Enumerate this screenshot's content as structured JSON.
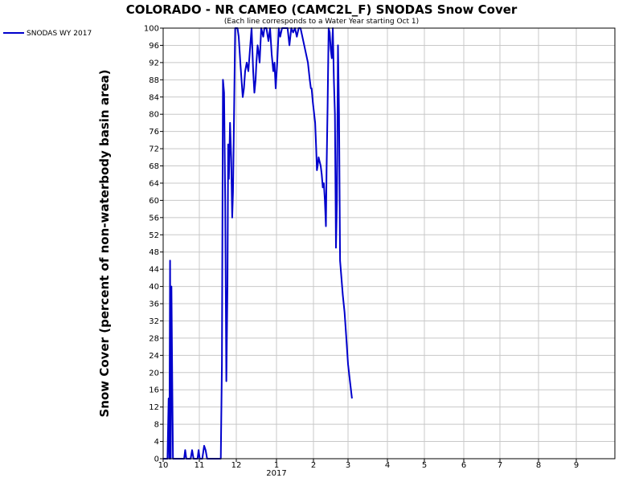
{
  "chart_data": {
    "type": "line",
    "title": "COLORADO - NR CAMEO (CAMC2L_F) SNODAS Snow Cover",
    "subtitle": "(Each line corresponds to a Water Year starting Oct 1)",
    "ylabel": "Snow Cover (percent of non-waterbody basin area)",
    "xlabel": "",
    "ylim": [
      0,
      100
    ],
    "y_ticks": [
      0,
      4,
      8,
      12,
      16,
      20,
      24,
      28,
      32,
      36,
      40,
      44,
      48,
      52,
      56,
      60,
      64,
      68,
      72,
      76,
      80,
      84,
      88,
      92,
      96,
      100
    ],
    "x_ticks": [
      {
        "m": 0,
        "label": "10"
      },
      {
        "m": 1,
        "label": "11"
      },
      {
        "m": 2,
        "label": "12"
      },
      {
        "m": 3,
        "label": "1"
      },
      {
        "m": 4,
        "label": "2"
      },
      {
        "m": 5,
        "label": "3"
      },
      {
        "m": 6,
        "label": "4"
      },
      {
        "m": 7,
        "label": "5"
      },
      {
        "m": 8,
        "label": "6"
      },
      {
        "m": 9,
        "label": "7"
      },
      {
        "m": 10,
        "label": "8"
      },
      {
        "m": 11,
        "label": "9"
      }
    ],
    "year_label": {
      "m": 3,
      "label": "2017"
    },
    "grid": true,
    "legend": {
      "placement": "top-left-outside"
    },
    "series": [
      {
        "name": "SNODAS WY 2017",
        "color": "#0000cc",
        "points": [
          [
            0.0,
            0
          ],
          [
            0.12,
            0
          ],
          [
            0.15,
            14
          ],
          [
            0.17,
            0
          ],
          [
            0.19,
            46
          ],
          [
            0.21,
            0
          ],
          [
            0.23,
            40
          ],
          [
            0.25,
            18
          ],
          [
            0.27,
            0
          ],
          [
            0.3,
            0
          ],
          [
            0.5,
            0
          ],
          [
            0.58,
            0
          ],
          [
            0.61,
            2
          ],
          [
            0.64,
            0
          ],
          [
            0.7,
            0
          ],
          [
            0.76,
            0
          ],
          [
            0.8,
            2
          ],
          [
            0.84,
            0
          ],
          [
            0.9,
            0
          ],
          [
            0.95,
            0
          ],
          [
            0.98,
            2
          ],
          [
            1.01,
            0
          ],
          [
            1.08,
            0
          ],
          [
            1.13,
            3
          ],
          [
            1.17,
            2
          ],
          [
            1.21,
            0
          ],
          [
            1.3,
            0
          ],
          [
            1.58,
            0
          ],
          [
            1.61,
            22
          ],
          [
            1.64,
            88
          ],
          [
            1.67,
            85
          ],
          [
            1.7,
            60
          ],
          [
            1.73,
            18
          ],
          [
            1.76,
            40
          ],
          [
            1.78,
            73
          ],
          [
            1.8,
            65
          ],
          [
            1.83,
            78
          ],
          [
            1.86,
            70
          ],
          [
            1.89,
            56
          ],
          [
            1.91,
            62
          ],
          [
            1.94,
            80
          ],
          [
            1.97,
            100
          ],
          [
            2.0,
            100
          ],
          [
            2.03,
            100
          ],
          [
            2.06,
            98
          ],
          [
            2.1,
            92
          ],
          [
            2.13,
            88
          ],
          [
            2.16,
            84
          ],
          [
            2.19,
            86
          ],
          [
            2.22,
            90
          ],
          [
            2.26,
            92
          ],
          [
            2.3,
            90
          ],
          [
            2.34,
            95
          ],
          [
            2.38,
            100
          ],
          [
            2.42,
            90
          ],
          [
            2.45,
            85
          ],
          [
            2.48,
            88
          ],
          [
            2.5,
            92
          ],
          [
            2.53,
            96
          ],
          [
            2.56,
            94
          ],
          [
            2.58,
            92
          ],
          [
            2.62,
            100
          ],
          [
            2.67,
            98
          ],
          [
            2.7,
            100
          ],
          [
            2.75,
            100
          ],
          [
            2.8,
            97
          ],
          [
            2.84,
            100
          ],
          [
            2.88,
            94
          ],
          [
            2.92,
            90
          ],
          [
            2.95,
            92
          ],
          [
            2.98,
            86
          ],
          [
            3.02,
            92
          ],
          [
            3.06,
            100
          ],
          [
            3.1,
            98
          ],
          [
            3.15,
            100
          ],
          [
            3.2,
            100
          ],
          [
            3.25,
            100
          ],
          [
            3.3,
            100
          ],
          [
            3.35,
            96
          ],
          [
            3.4,
            100
          ],
          [
            3.45,
            99
          ],
          [
            3.5,
            100
          ],
          [
            3.55,
            98
          ],
          [
            3.6,
            100
          ],
          [
            3.65,
            100
          ],
          [
            3.7,
            98
          ],
          [
            3.75,
            96
          ],
          [
            3.8,
            94
          ],
          [
            3.85,
            92
          ],
          [
            3.9,
            88
          ],
          [
            3.93,
            86
          ],
          [
            3.95,
            86
          ],
          [
            3.98,
            83
          ],
          [
            4.02,
            80
          ],
          [
            4.05,
            78
          ],
          [
            4.08,
            72
          ],
          [
            4.1,
            67
          ],
          [
            4.12,
            68
          ],
          [
            4.15,
            70
          ],
          [
            4.18,
            69
          ],
          [
            4.21,
            68
          ],
          [
            4.24,
            66
          ],
          [
            4.27,
            63
          ],
          [
            4.3,
            64
          ],
          [
            4.33,
            60
          ],
          [
            4.36,
            54
          ],
          [
            4.38,
            67
          ],
          [
            4.41,
            82
          ],
          [
            4.44,
            100
          ],
          [
            4.47,
            99
          ],
          [
            4.5,
            95
          ],
          [
            4.53,
            93
          ],
          [
            4.56,
            100
          ],
          [
            4.59,
            88
          ],
          [
            4.62,
            80
          ],
          [
            4.65,
            49
          ],
          [
            4.68,
            60
          ],
          [
            4.71,
            96
          ],
          [
            4.74,
            80
          ],
          [
            4.77,
            46
          ],
          [
            4.85,
            38
          ],
          [
            4.9,
            34
          ],
          [
            4.95,
            28
          ],
          [
            5.0,
            22
          ],
          [
            5.05,
            18
          ],
          [
            5.1,
            14
          ]
        ]
      }
    ]
  }
}
